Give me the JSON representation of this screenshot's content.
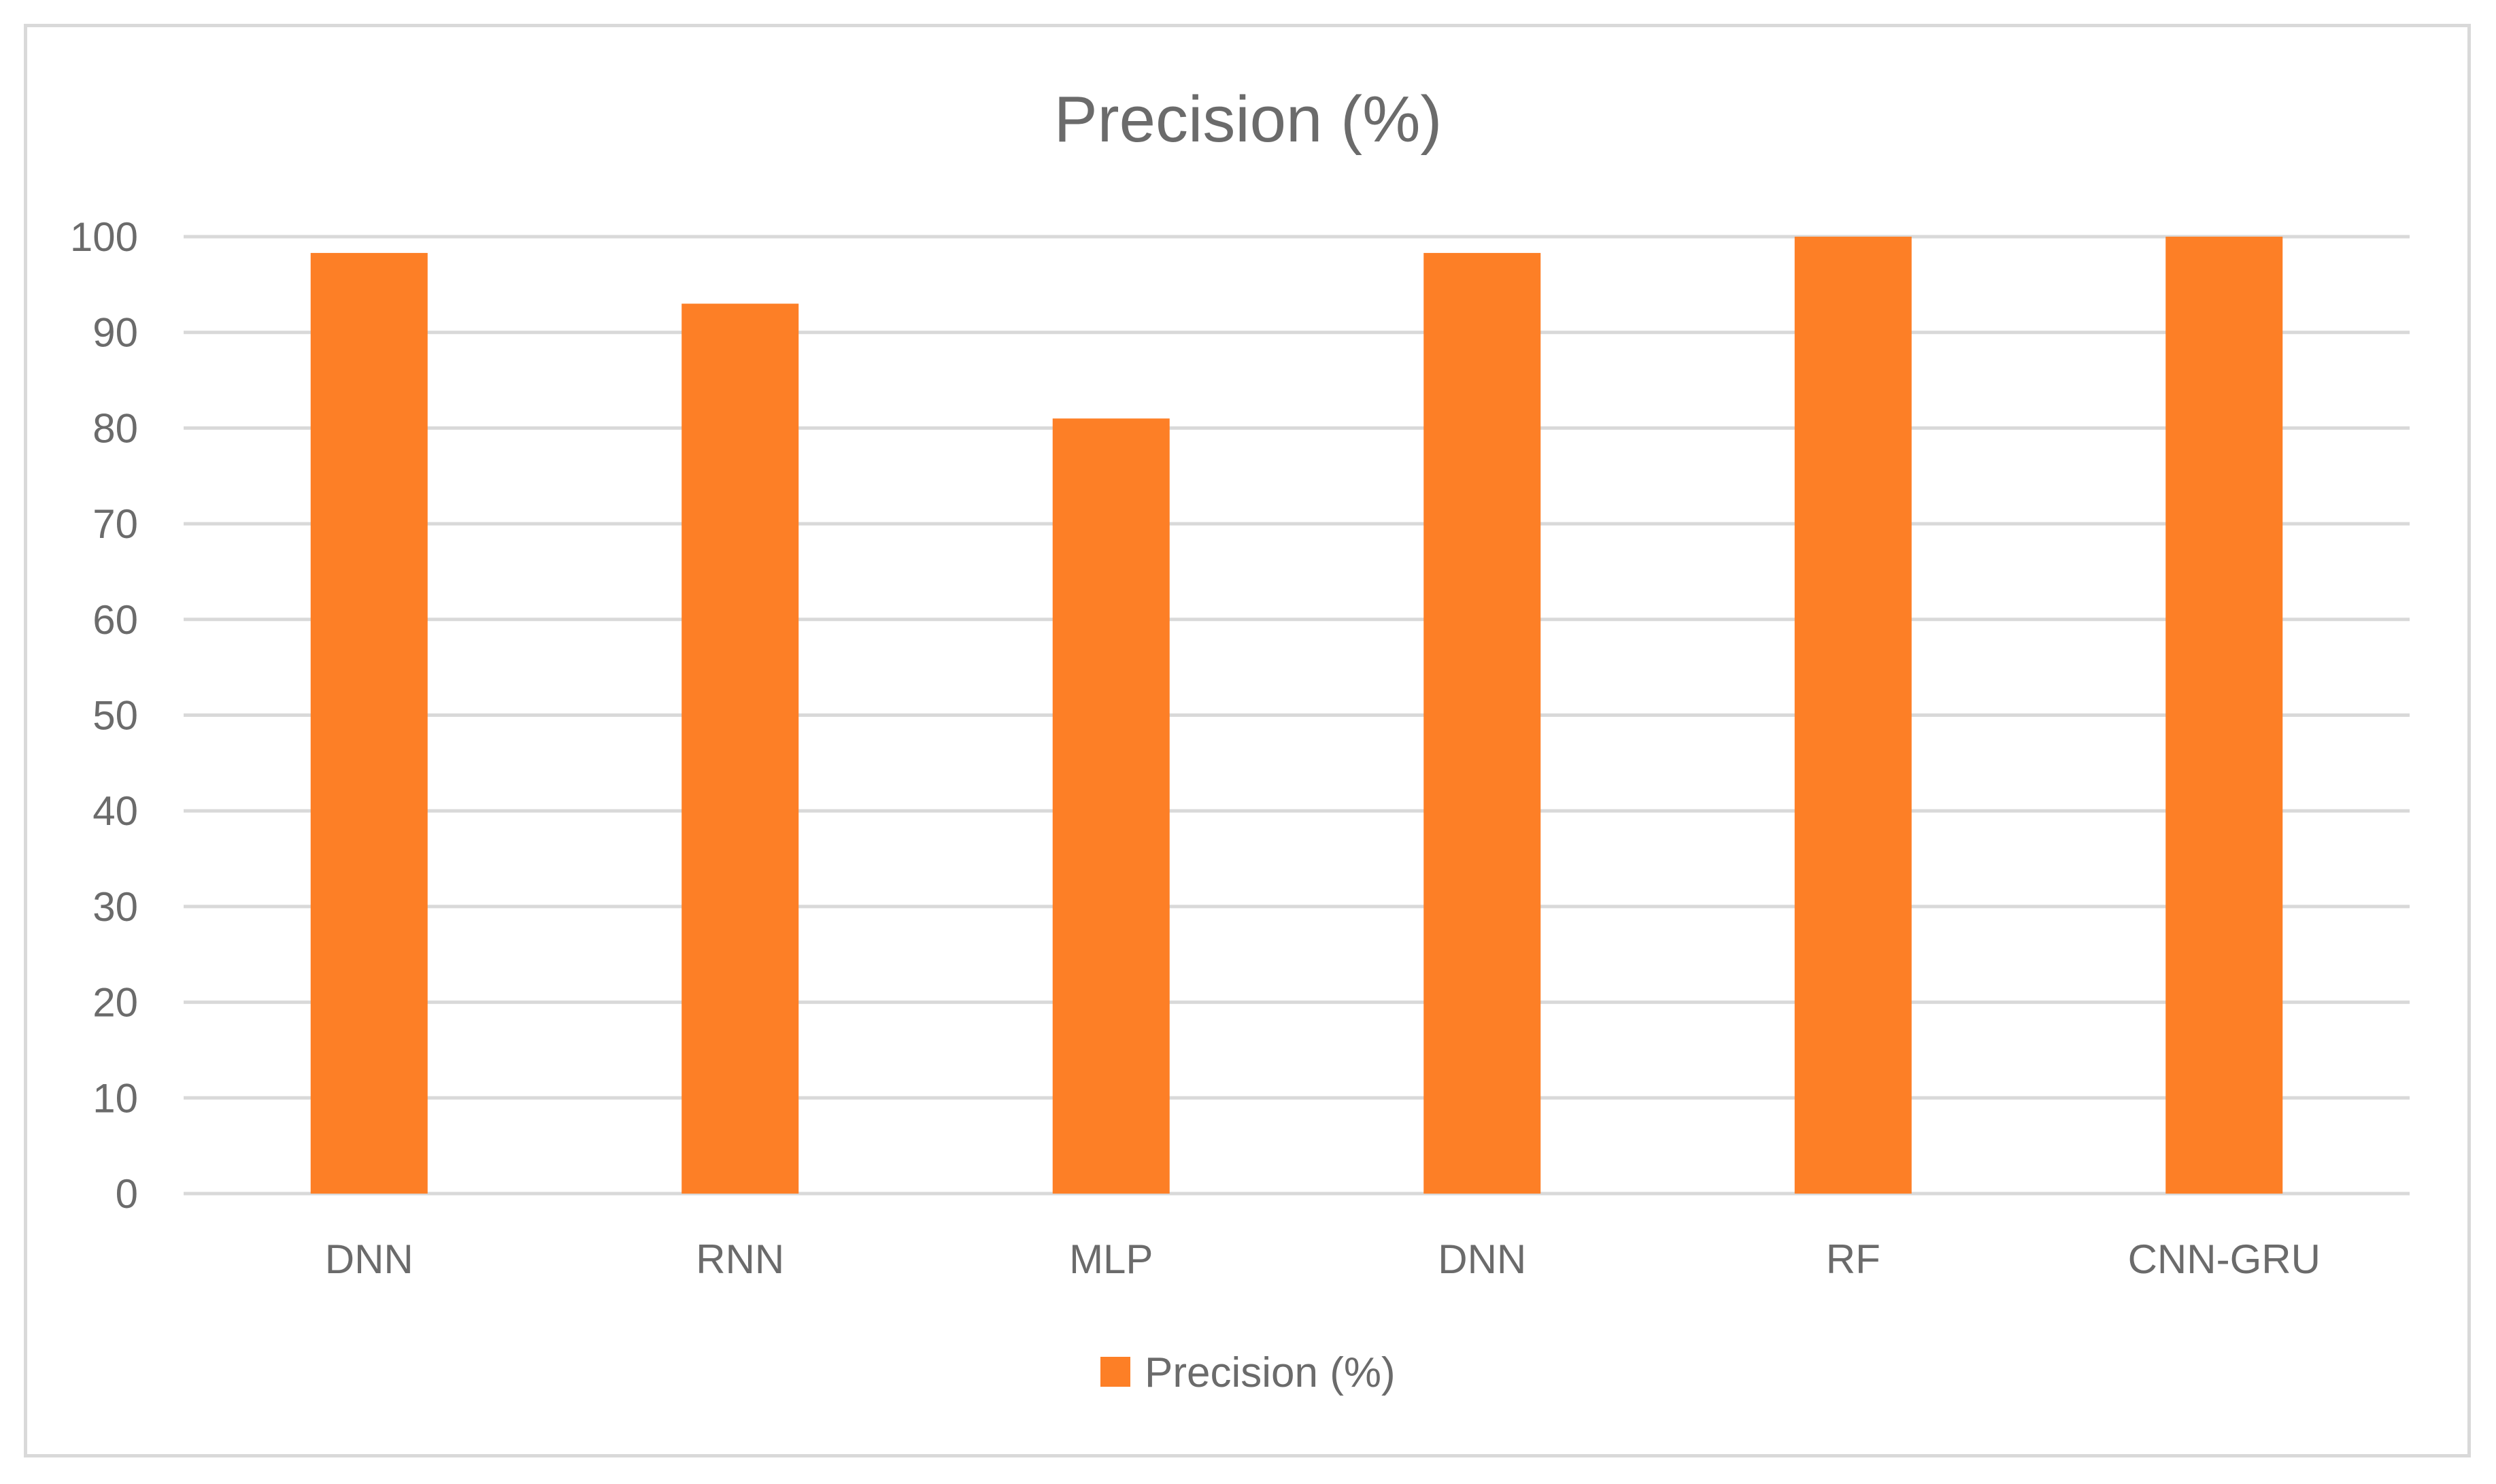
{
  "chart_data": {
    "type": "bar",
    "title": "Precision (%)",
    "categories": [
      "DNN",
      "RNN",
      "MLP",
      "DNN",
      "RF",
      "CNN-GRU"
    ],
    "series": [
      {
        "name": "Precision (%)",
        "values": [
          98.3,
          93,
          81,
          98.3,
          100,
          100
        ],
        "color": "#fd7f26"
      }
    ],
    "xlabel": "",
    "ylabel": "",
    "ylim": [
      0,
      100
    ],
    "yticks": [
      0,
      10,
      20,
      30,
      40,
      50,
      60,
      70,
      80,
      90,
      100
    ],
    "grid": true,
    "legend_position": "bottom"
  },
  "colors": {
    "text": "#6b6b6b",
    "gridline": "#d9d9d9",
    "frame": "#d9d9d9"
  }
}
